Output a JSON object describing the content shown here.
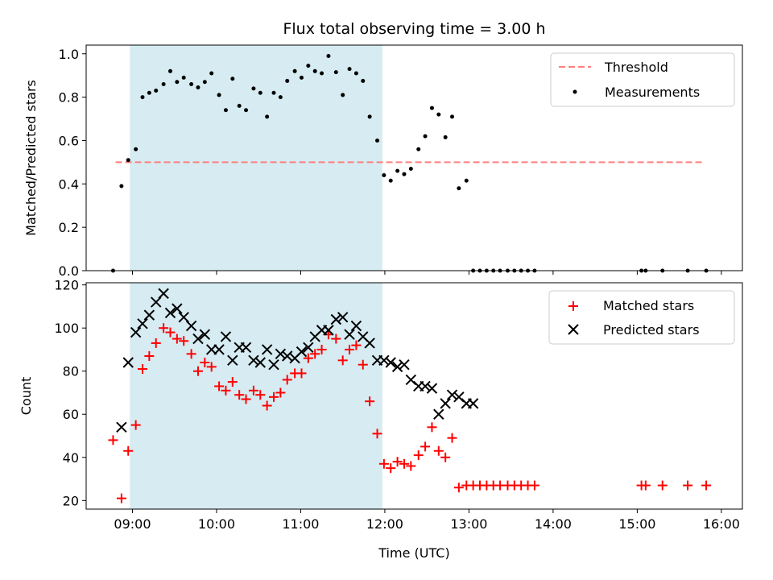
{
  "chart_data": [
    {
      "type": "scatter",
      "title": "Flux total observing time = 3.00 h",
      "ylabel": "Matched/Predicted stars",
      "xlabel": "",
      "x_unit": "hours (UTC)",
      "xlim": [
        8.45,
        16.25
      ],
      "ylim": [
        0,
        1.04
      ],
      "yticks": [
        0,
        0.2,
        0.4,
        0.6,
        0.8,
        1.0
      ],
      "ytick_labels": [
        "0.0",
        "0.2",
        "0.4",
        "0.6",
        "0.8",
        "1.0"
      ],
      "shaded_span": [
        8.97,
        11.97
      ],
      "shade_color": "#add8e6",
      "threshold": {
        "name": "Threshold",
        "y": 0.5,
        "x_range": [
          8.8,
          15.8
        ],
        "color": "#ff7f7f"
      },
      "series": [
        {
          "name": "Measurements",
          "marker": "dot",
          "color": "#000000",
          "x": [
            8.77,
            8.87,
            8.95,
            9.04,
            9.12,
            9.2,
            9.28,
            9.37,
            9.45,
            9.53,
            9.61,
            9.7,
            9.78,
            9.86,
            9.94,
            10.03,
            10.11,
            10.19,
            10.27,
            10.35,
            10.44,
            10.52,
            10.6,
            10.68,
            10.76,
            10.84,
            10.93,
            11.01,
            11.09,
            11.17,
            11.25,
            11.33,
            11.42,
            11.5,
            11.58,
            11.66,
            11.74,
            11.82,
            11.91,
            11.99,
            12.07,
            12.15,
            12.23,
            12.31,
            12.4,
            12.48,
            12.56,
            12.64,
            12.72,
            12.8,
            12.88,
            12.97,
            13.05,
            13.13,
            13.21,
            13.29,
            13.37,
            13.46,
            13.54,
            13.62,
            13.7,
            13.78,
            15.05,
            15.1,
            15.3,
            15.6,
            15.82
          ],
          "y": [
            0.0,
            0.39,
            0.51,
            0.56,
            0.8,
            0.82,
            0.83,
            0.86,
            0.92,
            0.87,
            0.89,
            0.86,
            0.845,
            0.87,
            0.91,
            0.81,
            0.74,
            0.885,
            0.76,
            0.74,
            0.84,
            0.82,
            0.71,
            0.82,
            0.8,
            0.875,
            0.92,
            0.89,
            0.945,
            0.92,
            0.91,
            0.99,
            0.915,
            0.81,
            0.93,
            0.91,
            0.875,
            0.71,
            0.6,
            0.44,
            0.415,
            0.46,
            0.445,
            0.47,
            0.56,
            0.62,
            0.75,
            0.72,
            0.615,
            0.71,
            0.38,
            0.415,
            0.0,
            0.0,
            0.0,
            0.0,
            0.0,
            0.0,
            0.0,
            0.0,
            0.0,
            0.0,
            0.0,
            0.0,
            0.0,
            0.0,
            0.0
          ]
        }
      ],
      "legend": {
        "placement": "top-right",
        "entries": [
          "Threshold",
          "Measurements"
        ]
      }
    },
    {
      "type": "scatter",
      "title": "",
      "xlabel": "Time (UTC)",
      "ylabel": "Count",
      "x_unit": "hours (UTC)",
      "xlim": [
        8.45,
        16.25
      ],
      "ylim": [
        16,
        121
      ],
      "yticks": [
        20,
        40,
        60,
        80,
        100,
        120
      ],
      "ytick_labels": [
        "20",
        "40",
        "60",
        "80",
        "100",
        "120"
      ],
      "xticks": [
        9,
        10,
        11,
        12,
        13,
        14,
        15,
        16
      ],
      "xtick_labels": [
        "09:00",
        "10:00",
        "11:00",
        "12:00",
        "13:00",
        "14:00",
        "15:00",
        "16:00"
      ],
      "shaded_span": [
        8.97,
        11.97
      ],
      "shade_color": "#add8e6",
      "series": [
        {
          "name": "Matched stars",
          "marker": "plus",
          "color": "#ff0000",
          "x": [
            8.77,
            8.87,
            8.95,
            9.04,
            9.12,
            9.2,
            9.28,
            9.37,
            9.45,
            9.53,
            9.61,
            9.7,
            9.78,
            9.86,
            9.94,
            10.03,
            10.11,
            10.19,
            10.27,
            10.35,
            10.44,
            10.52,
            10.6,
            10.68,
            10.76,
            10.84,
            10.93,
            11.01,
            11.09,
            11.17,
            11.25,
            11.33,
            11.42,
            11.5,
            11.58,
            11.66,
            11.74,
            11.82,
            11.91,
            11.99,
            12.07,
            12.15,
            12.23,
            12.31,
            12.4,
            12.48,
            12.56,
            12.64,
            12.72,
            12.8,
            12.88,
            12.97,
            13.05,
            13.13,
            13.21,
            13.29,
            13.37,
            13.46,
            13.54,
            13.62,
            13.7,
            13.78,
            15.05,
            15.1,
            15.3,
            15.6,
            15.82
          ],
          "y": [
            48,
            21,
            43,
            55,
            81,
            87,
            93,
            100,
            98,
            95,
            94,
            88,
            80,
            84,
            82,
            73,
            71,
            75,
            69,
            67,
            71,
            69,
            64,
            68,
            70,
            76,
            79,
            79,
            86,
            88,
            90,
            97,
            95,
            85,
            90,
            92,
            83,
            66,
            51,
            37,
            35,
            38,
            37,
            36,
            41,
            45,
            54,
            43,
            40,
            49,
            26,
            27,
            27,
            27,
            27,
            27,
            27,
            27,
            27,
            27,
            27,
            27,
            27,
            27,
            27,
            27,
            27
          ]
        },
        {
          "name": "Predicted stars",
          "marker": "x",
          "color": "#000000",
          "x": [
            8.87,
            8.95,
            9.04,
            9.12,
            9.2,
            9.28,
            9.37,
            9.45,
            9.53,
            9.61,
            9.7,
            9.78,
            9.86,
            9.94,
            10.03,
            10.11,
            10.19,
            10.27,
            10.35,
            10.44,
            10.52,
            10.6,
            10.68,
            10.76,
            10.84,
            10.93,
            11.01,
            11.09,
            11.17,
            11.25,
            11.33,
            11.42,
            11.5,
            11.58,
            11.66,
            11.74,
            11.82,
            11.91,
            11.99,
            12.07,
            12.15,
            12.23,
            12.31,
            12.4,
            12.48,
            12.56,
            12.64,
            12.72,
            12.8,
            12.88,
            12.97,
            13.05
          ],
          "y": [
            54,
            84,
            98,
            102,
            106,
            112,
            116,
            107,
            109,
            105,
            101,
            95,
            97,
            90,
            90,
            96,
            85,
            91,
            91,
            85,
            84,
            90,
            83,
            88,
            87,
            86,
            89,
            91,
            96,
            99,
            99,
            104,
            105,
            97,
            101,
            96,
            93,
            85,
            85,
            84,
            82,
            83,
            76,
            73,
            73,
            72,
            60,
            65,
            69,
            68,
            65,
            65
          ]
        }
      ],
      "legend": {
        "placement": "top-right",
        "entries": [
          "Matched stars",
          "Predicted stars"
        ]
      }
    }
  ]
}
